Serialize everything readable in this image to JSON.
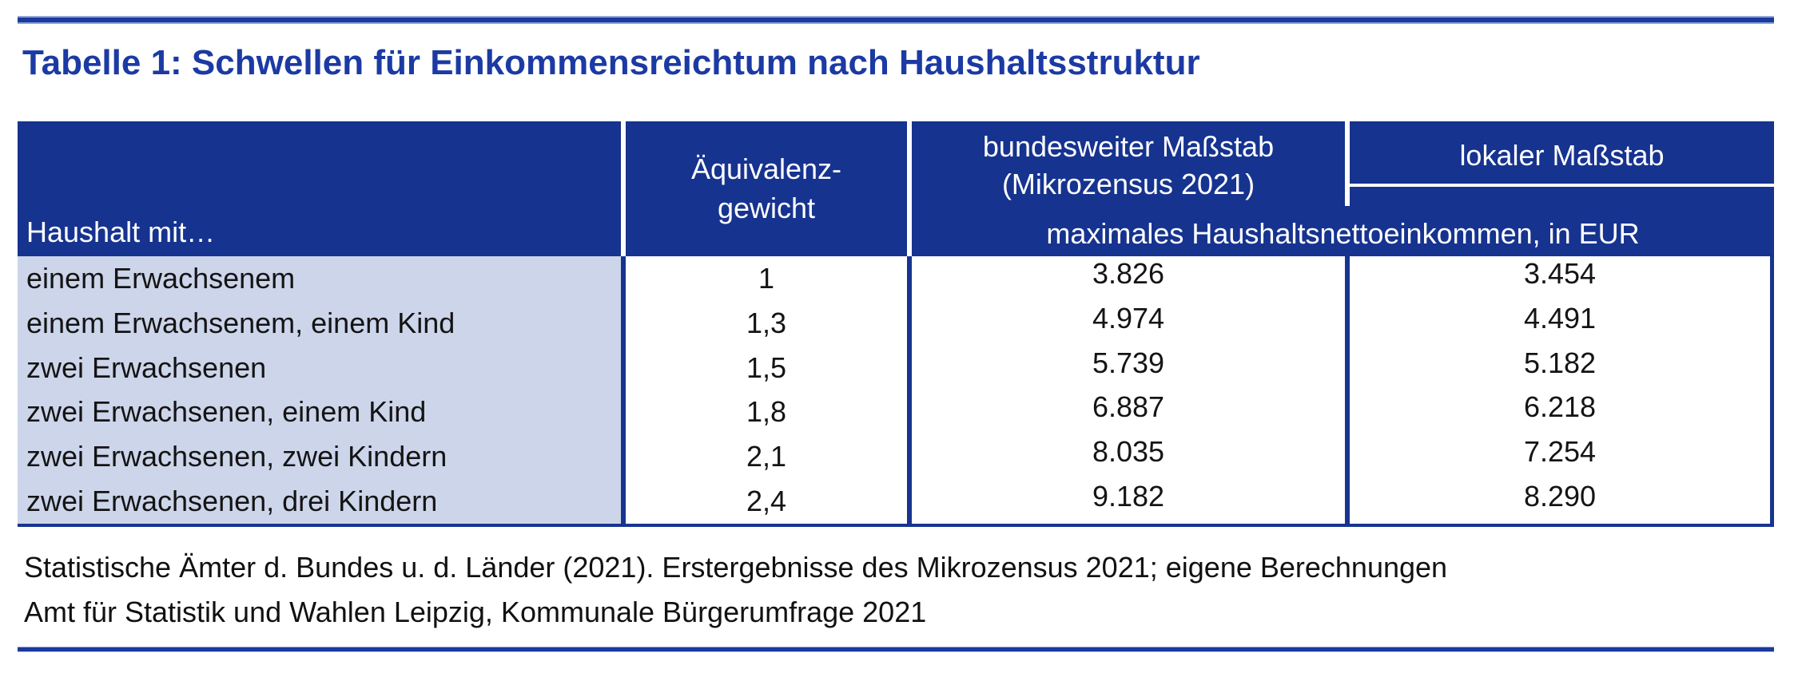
{
  "title": "Tabelle 1: Schwellen für Einkommensreichtum nach Haushaltsstruktur",
  "table": {
    "header": {
      "col1": "Haushalt mit…",
      "col2_line1": "Äquivalenz-",
      "col2_line2": "gewicht",
      "col3_line1": "bundesweiter Maßstab",
      "col3_line2": "(Mikrozensus 2021)",
      "col4": "lokaler Maßstab",
      "subheader": "maximales Haushaltsnettoeinkommen, in EUR"
    },
    "rows": [
      {
        "household": "einem Erwachsenem",
        "weight": "1",
        "national": "3.826",
        "local": "3.454"
      },
      {
        "household": "einem Erwachsenem, einem Kind",
        "weight": "1,3",
        "national": "4.974",
        "local": "4.491"
      },
      {
        "household": "zwei Erwachsenen",
        "weight": "1,5",
        "national": "5.739",
        "local": "5.182"
      },
      {
        "household": "zwei Erwachsenen, einem Kind",
        "weight": "1,8",
        "national": "6.887",
        "local": "6.218"
      },
      {
        "household": "zwei Erwachsenen, zwei Kindern",
        "weight": "2,1",
        "national": "8.035",
        "local": "7.254"
      },
      {
        "household": "zwei Erwachsenen, drei Kindern",
        "weight": "2,4",
        "national": "9.182",
        "local": "8.290"
      }
    ]
  },
  "sources": [
    "Statistische Ämter d. Bundes u. d. Länder (2021). Erstergebnisse des Mikrozensus 2021; eigene Berechnungen",
    "Amt für Statistik und Wahlen Leipzig, Kommunale Bürgerumfrage 2021"
  ],
  "colors": {
    "header_fill": "#16338f",
    "row_fill": "#ccd5ea",
    "accent_rule": "#1b3a9e",
    "title_text": "#1c3aa3"
  }
}
